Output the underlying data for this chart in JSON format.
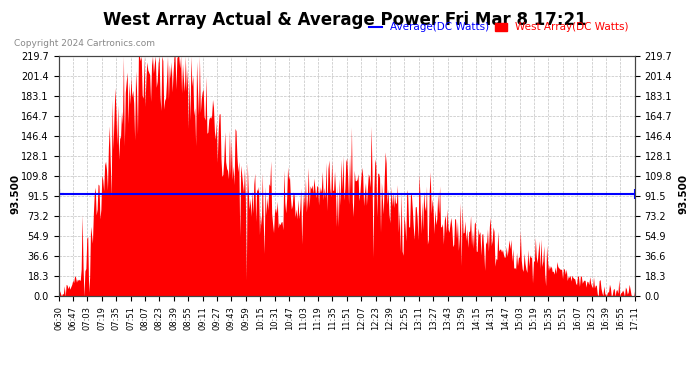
{
  "title": "West Array Actual & Average Power Fri Mar 8 17:21",
  "copyright_text": "Copyright 2024 Cartronics.com",
  "legend_avg": "Average(DC Watts)",
  "legend_west": "West Array(DC Watts)",
  "avg_value": 93.5,
  "right_label": "93.500",
  "left_label": "93.500",
  "y_max": 219.7,
  "y_min": 0.0,
  "y_ticks": [
    0.0,
    18.3,
    36.6,
    54.9,
    73.2,
    91.5,
    109.8,
    128.1,
    146.4,
    164.7,
    183.1,
    201.4,
    219.7
  ],
  "background_color": "#ffffff",
  "grid_color": "#bbbbbb",
  "bar_color": "#ff0000",
  "avg_line_color": "#0000ff",
  "title_fontsize": 12,
  "x_labels": [
    "06:30",
    "06:47",
    "07:03",
    "07:19",
    "07:35",
    "07:51",
    "08:07",
    "08:23",
    "08:39",
    "08:55",
    "09:11",
    "09:27",
    "09:43",
    "09:59",
    "10:15",
    "10:31",
    "10:47",
    "11:03",
    "11:19",
    "11:35",
    "11:51",
    "12:07",
    "12:23",
    "12:39",
    "12:55",
    "13:11",
    "13:27",
    "13:43",
    "13:59",
    "14:15",
    "14:31",
    "14:47",
    "15:03",
    "15:19",
    "15:35",
    "15:51",
    "16:07",
    "16:23",
    "16:39",
    "16:55",
    "17:11"
  ]
}
